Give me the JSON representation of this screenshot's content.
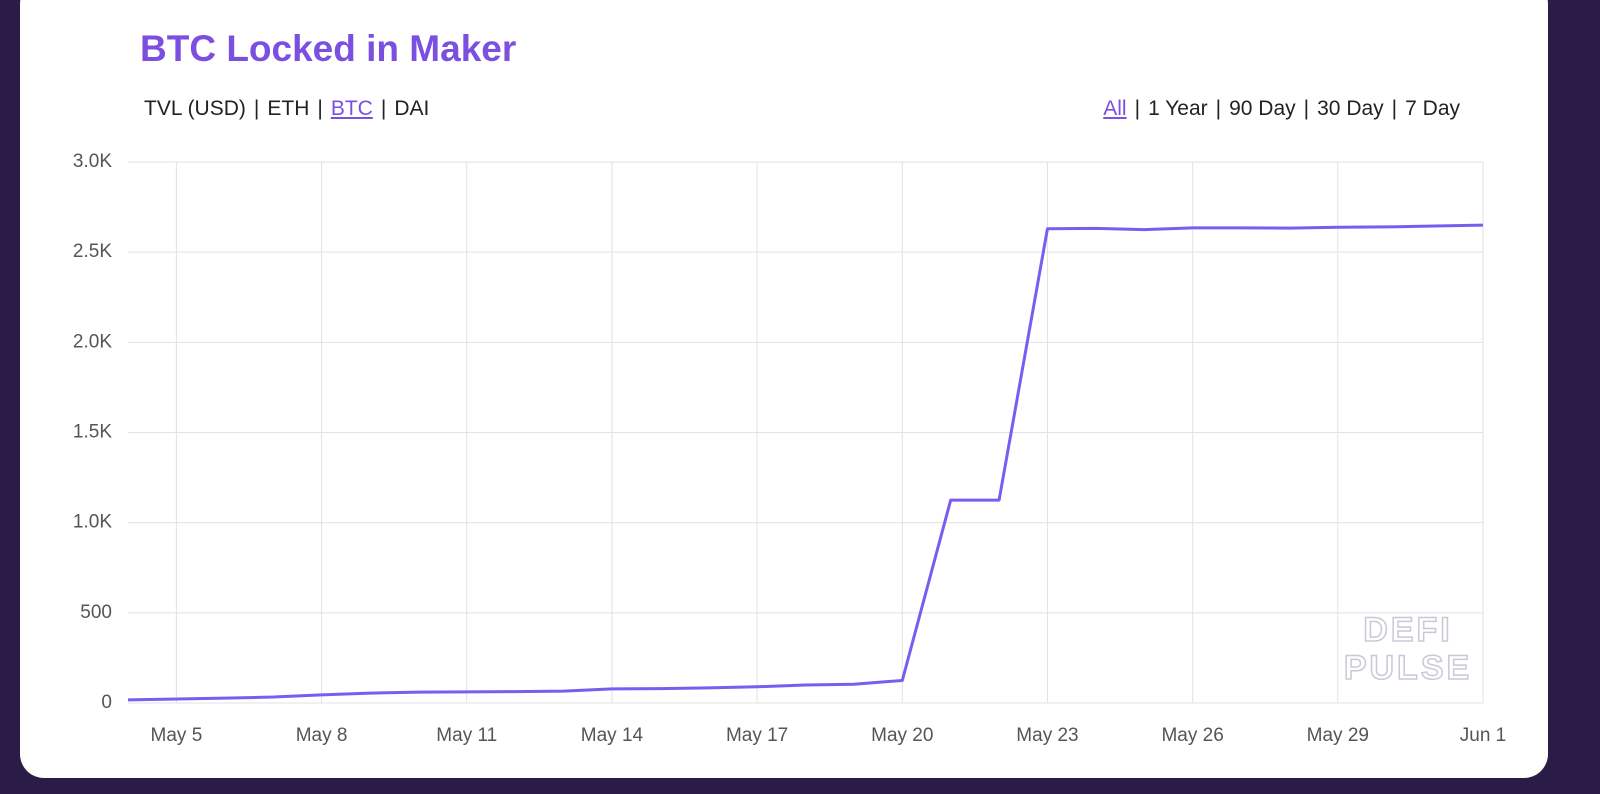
{
  "chart_data": {
    "type": "line",
    "title": "BTC Locked in Maker",
    "x": [
      "May 4",
      "May 5",
      "May 6",
      "May 7",
      "May 8",
      "May 9",
      "May 10",
      "May 11",
      "May 12",
      "May 13",
      "May 14",
      "May 15",
      "May 16",
      "May 17",
      "May 18",
      "May 19",
      "May 20",
      "May 21",
      "May 22",
      "May 23",
      "May 24",
      "May 25",
      "May 26",
      "May 27",
      "May 28",
      "May 29",
      "May 30",
      "May 31",
      "Jun 1"
    ],
    "series": [
      {
        "color": "#7b5cf0",
        "values": [
          17,
          22,
          27,
          33,
          45,
          55,
          60,
          62,
          63,
          66,
          78,
          80,
          84,
          90,
          100,
          104,
          125,
          1125,
          1125,
          2630,
          2632,
          2625,
          2635,
          2635,
          2633,
          2638,
          2640,
          2645,
          2650
        ]
      }
    ],
    "xticks": [
      "May 5",
      "May 8",
      "May 11",
      "May 14",
      "May 17",
      "May 20",
      "May 23",
      "May 26",
      "May 29",
      "Jun 1"
    ],
    "ylim": [
      0,
      3000
    ],
    "yticks": [
      0,
      500,
      {
        "value": 1000,
        "label": "1.0K"
      },
      {
        "value": 1500,
        "label": "1.5K"
      },
      {
        "value": 2000,
        "label": "2.0K"
      },
      {
        "value": 2500,
        "label": "2.5K"
      },
      {
        "value": 3000,
        "label": "3.0K"
      }
    ],
    "grid": true
  },
  "ui": {
    "metric_tabs": [
      "TVL (USD)",
      "ETH",
      "BTC",
      "DAI"
    ],
    "active_metric_index": 2,
    "range_tabs": [
      "All",
      "1 Year",
      "90 Day",
      "30 Day",
      "7 Day"
    ],
    "active_range_index": 0,
    "separator": "|",
    "watermark": [
      "DEFI",
      "PULSE"
    ]
  }
}
